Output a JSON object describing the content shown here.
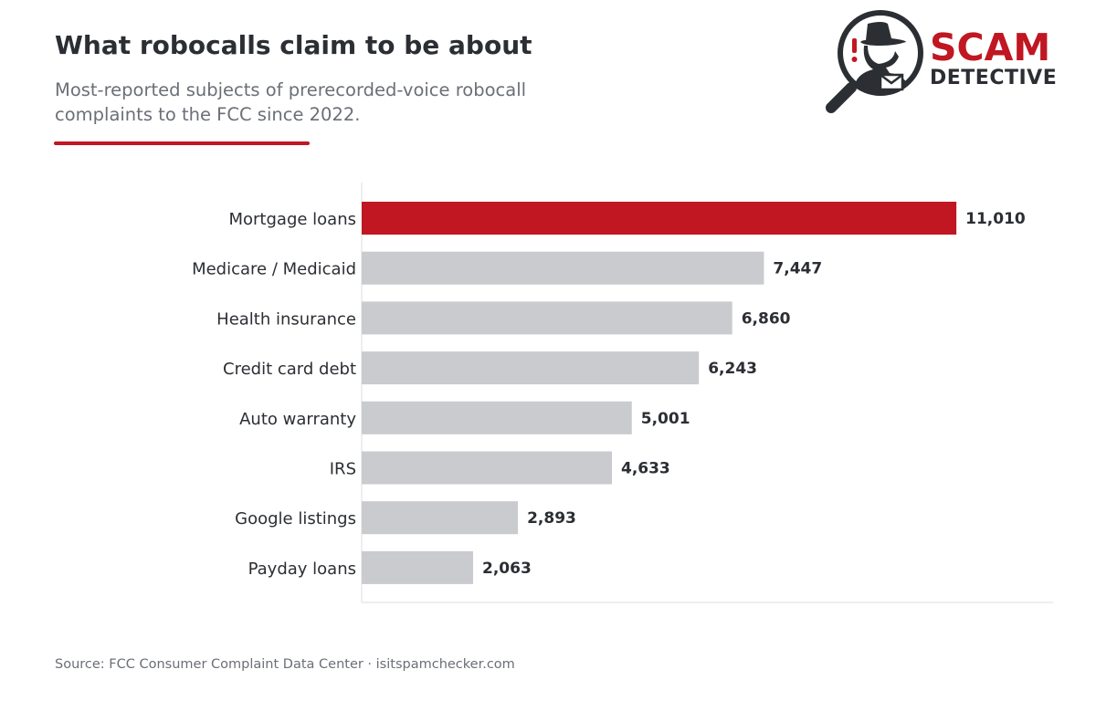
{
  "header": {
    "title": "What robocalls claim to be about",
    "subtitle": "Most-reported subjects of prerecorded-voice robocall complaints to the FCC since 2022."
  },
  "logo": {
    "word1": "SCAM",
    "word2": "DETECTIVE"
  },
  "colors": {
    "highlight": "#c01722",
    "bar": "#c9cbcf",
    "text": "#2b2e33",
    "muted": "#6b6f76"
  },
  "chart_data": {
    "type": "bar",
    "orientation": "horizontal",
    "categories": [
      "Mortgage loans",
      "Medicare / Medicaid",
      "Health insurance",
      "Credit card debt",
      "Auto warranty",
      "IRS",
      "Google listings",
      "Payday loans"
    ],
    "values": [
      11010,
      7447,
      6860,
      6243,
      5001,
      4633,
      2893,
      2063
    ],
    "value_labels": [
      "11,010",
      "7,447",
      "6,860",
      "6,243",
      "5,001",
      "4,633",
      "2,893",
      "2,063"
    ],
    "highlight_index": 0,
    "xlim": [
      0,
      12800
    ],
    "grid": false,
    "legend": "none"
  },
  "footer": {
    "source": "Source: FCC Consumer Complaint Data Center  ·  isitspamchecker.com"
  }
}
